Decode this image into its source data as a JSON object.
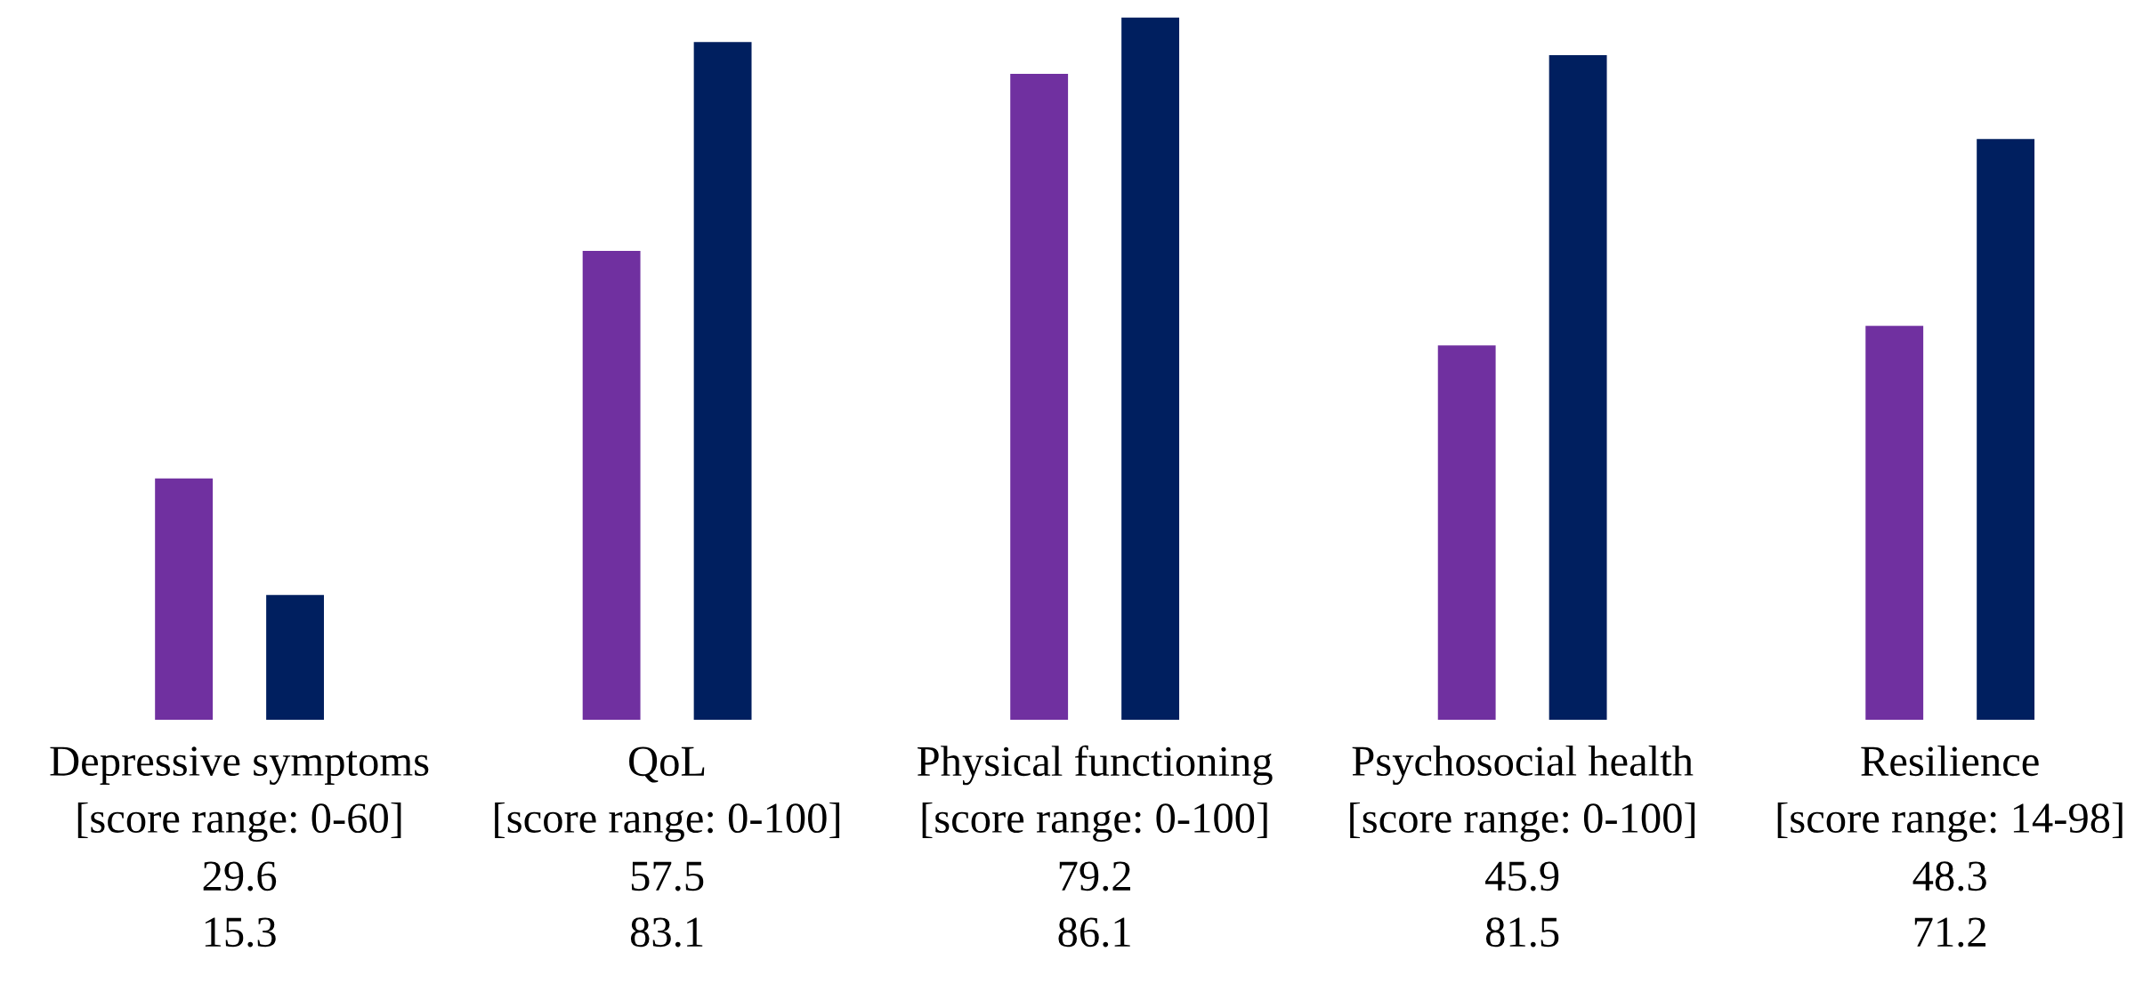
{
  "chart_data": {
    "type": "bar",
    "categories": [
      "Depressive symptoms\n[score range: 0-60]",
      "QoL\n[score range: 0-100]",
      "Physical functioning\n[score range: 0-100]",
      "Psychosocial health\n[score range: 0-100]",
      "Resilience\n[score range: 14-98]"
    ],
    "series": [
      {
        "color": "#7030a0",
        "values": [
          29.6,
          57.5,
          79.2,
          45.9,
          48.3
        ]
      },
      {
        "color": "#001f5f",
        "values": [
          15.3,
          83.1,
          86.1,
          81.5,
          71.2
        ]
      }
    ],
    "data_labels": true
  }
}
